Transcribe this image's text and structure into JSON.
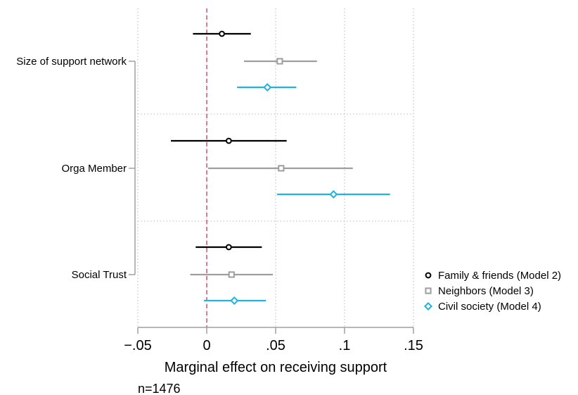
{
  "chart_data": {
    "type": "scatter",
    "subtype": "coefficient-plot",
    "orientation": "horizontal",
    "title": "",
    "xlabel": "Marginal effect on receiving support",
    "ylabel": "",
    "note": "n=1476",
    "xlim": [
      -0.05,
      0.15
    ],
    "xticks": [
      -0.05,
      0,
      0.05,
      0.1,
      0.15
    ],
    "xtick_labels": [
      "−.05",
      "0",
      ".05",
      ".1",
      ".15"
    ],
    "reference_line": {
      "x": 0,
      "style": "dashed",
      "color": "#e07a95"
    },
    "grid": "vertical dotted at x ticks; horizontal dotted between categories",
    "legend_position": "right",
    "categories": [
      "Size of support network",
      "Orga Member",
      "Social Trust"
    ],
    "series": [
      {
        "name": "Family & friends (Model 2)",
        "color": "#000000",
        "marker": "circle",
        "estimates": [
          0.011,
          0.016,
          0.016
        ],
        "ci_low": [
          -0.01,
          -0.026,
          -0.008
        ],
        "ci_high": [
          0.032,
          0.058,
          0.04
        ]
      },
      {
        "name": "Neighbors (Model 3)",
        "color": "#9e9e9e",
        "marker": "square",
        "estimates": [
          0.053,
          0.054,
          0.018
        ],
        "ci_low": [
          0.027,
          0.001,
          -0.012
        ],
        "ci_high": [
          0.08,
          0.106,
          0.048
        ]
      },
      {
        "name": "Civil society (Model 4)",
        "color": "#1fb3e0",
        "marker": "diamond",
        "estimates": [
          0.044,
          0.092,
          0.02
        ],
        "ci_low": [
          0.022,
          0.051,
          -0.002
        ],
        "ci_high": [
          0.065,
          0.133,
          0.043
        ]
      }
    ]
  }
}
